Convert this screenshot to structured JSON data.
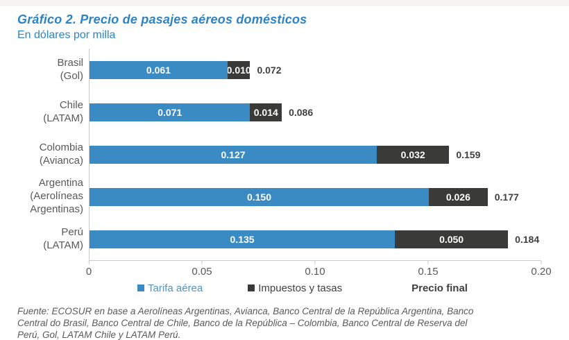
{
  "page": {
    "source_lines": [
      "Fuente: ECOSUR en base a Aerolíneas Argentinas, Avianca, Banco Central de la República Argentina, Banco",
      "Central do Brasil, Banco Central de Chile, Banco de la República – Colombia, Banco Central de Reserva del",
      "Perú, Gol, LATAM Chile y LATAM Perú."
    ]
  },
  "colors": {
    "title_blue": "#2d83c5",
    "bar_blue": "#3a8ac4",
    "bar_dark": "#3a3a38",
    "legend_blue_text": "#4a94ce",
    "legend_dark_text": "#3f3f3f",
    "axis_gray": "#c9c9c9",
    "label_gray": "#595959"
  },
  "chart_data": {
    "type": "bar",
    "orientation": "horizontal",
    "stacked": true,
    "title": "Gráfico 2. Precio de pasajes aéreos domésticos",
    "subtitle": "En dólares por milla",
    "categories": [
      "Brasil (Gol)",
      "Chile (LATAM)",
      "Colombia (Avianca)",
      "Argentina (Aerolíneas Argentinas)",
      "Perú (LATAM)"
    ],
    "category_lines": [
      [
        "Brasil",
        "(Gol)"
      ],
      [
        "Chile",
        "(LATAM)"
      ],
      [
        "Colombia",
        "(Avianca)"
      ],
      [
        "Argentina",
        "(Aerolíneas",
        "Argentinas)"
      ],
      [
        "Perú",
        "(LATAM)"
      ]
    ],
    "series": [
      {
        "name": "Tarifa aérea",
        "color": "#3a8ac4",
        "values": [
          0.061,
          0.071,
          0.127,
          0.15,
          0.135
        ]
      },
      {
        "name": "Impuestos y tasas",
        "color": "#3a3a38",
        "values": [
          0.01,
          0.014,
          0.032,
          0.026,
          0.05
        ]
      }
    ],
    "totals": [
      0.072,
      0.086,
      0.159,
      0.177,
      0.184
    ],
    "totals_label": "Precio final",
    "value_decimals": 3,
    "xlim": [
      0,
      0.2
    ],
    "x_tick_values": [
      0,
      0.05,
      0.1,
      0.15,
      0.2
    ],
    "x_tick_labels": [
      "0",
      "0.05",
      "0.10",
      "0.15",
      "0.20"
    ],
    "grid": false,
    "legend_position": "bottom"
  }
}
